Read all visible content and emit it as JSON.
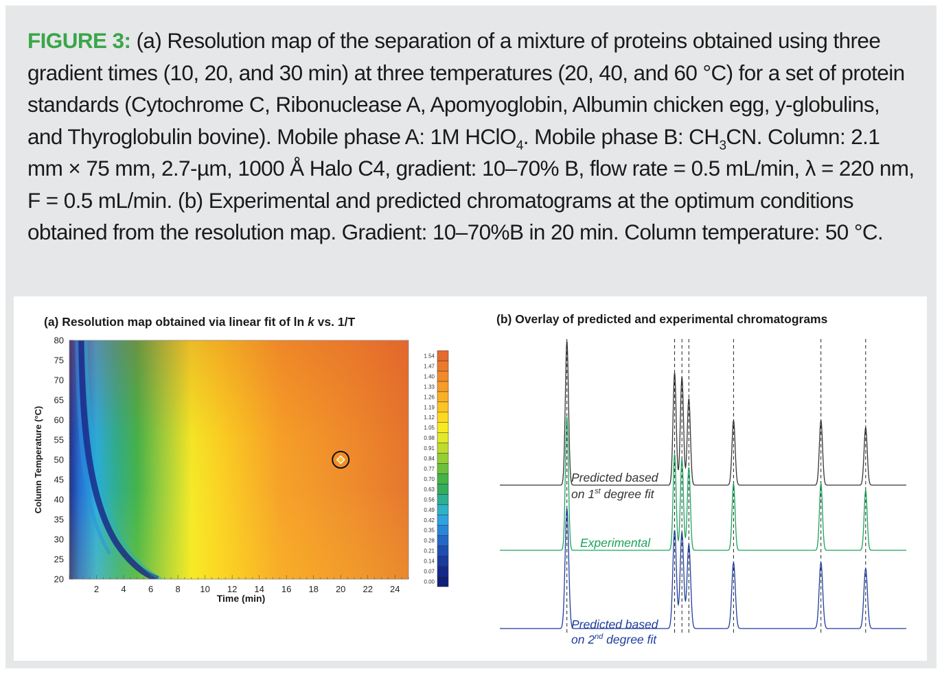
{
  "caption": {
    "label": "FIGURE 3:",
    "text1": " (a) Resolution map of the separation of a mixture of proteins obtained using three gradient times (10, 20, and 30 min) at three temperatures (20, 40, and 60 °C) for a set of protein standards (Cytochrome C, Ribonuclease A, Apomyoglobin, Albumin chicken egg, y-globulins, and Thyroglobulin bovine). Mobile phase A: 1M HClO",
    "sub1": "4",
    "text2": ". Mobile phase B: CH",
    "sub2": "3",
    "text3": "CN. Column: 2.1 mm × 75 mm, 2.7-µm, 1000 Å Halo C4, gradient: 10–70% B, flow rate = 0.5 mL/min, λ = 220 nm, F = 0.5 mL/min. (b) Experimental and predicted chromatograms at the optimum conditions obtained from the resolution map. Gradient: 10–70%B in 20 min. Column temperature: 50 °C."
  },
  "colors": {
    "label_green": "#3aa64a",
    "predicted_1st": "#333333",
    "experimental": "#1aa35a",
    "predicted_2nd": "#1e3c9e"
  },
  "chart_data": [
    {
      "type": "heatmap",
      "title_prefix": "(a) Resolution map obtained via linear fit of ln ",
      "title_k": "k",
      "title_suffix": " vs. 1/T",
      "xlabel": "Time (min)",
      "ylabel": "Column Temperature (°C)",
      "xlim": [
        0,
        25
      ],
      "ylim": [
        20,
        80
      ],
      "xticks": [
        2,
        4,
        6,
        8,
        10,
        12,
        14,
        16,
        18,
        20,
        22,
        24
      ],
      "yticks": [
        20,
        25,
        30,
        35,
        40,
        45,
        50,
        55,
        60,
        65,
        70,
        75,
        80
      ],
      "colorbar_ticks": [
        "0.00",
        "0.07",
        "0.14",
        "0.21",
        "0.28",
        "0.35",
        "0.42",
        "0.49",
        "0.56",
        "0.63",
        "0.70",
        "0.77",
        "0.84",
        "0.91",
        "0.98",
        "1.05",
        "1.12",
        "1.19",
        "1.26",
        "1.33",
        "1.40",
        "1.47",
        "1.54"
      ],
      "colorbar_range": [
        0,
        1.54
      ],
      "optimum": {
        "x": 20,
        "y": 50
      }
    },
    {
      "type": "line",
      "title": "(b) Overlay of predicted and experimental chromatograms",
      "peaks_x": [
        0.165,
        0.43,
        0.448,
        0.465,
        0.575,
        0.79,
        0.9
      ],
      "series": [
        {
          "label_line1": "Predicted based",
          "label_line2_a": "on 1",
          "label_line2_sup": "st",
          "label_line2_b": " degree fit",
          "heights": [
            1.0,
            0.78,
            0.75,
            0.6,
            0.45,
            0.45,
            0.4
          ]
        },
        {
          "label_line1": "Experimental",
          "heights": [
            1.0,
            0.72,
            0.68,
            0.62,
            0.5,
            0.5,
            0.45
          ]
        },
        {
          "label_line1": "Predicted based",
          "label_line2_a": "on 2",
          "label_line2_sup": "nd",
          "label_line2_b": " degree fit",
          "heights": [
            1.0,
            0.82,
            0.8,
            0.7,
            0.55,
            0.55,
            0.5
          ]
        }
      ]
    }
  ]
}
